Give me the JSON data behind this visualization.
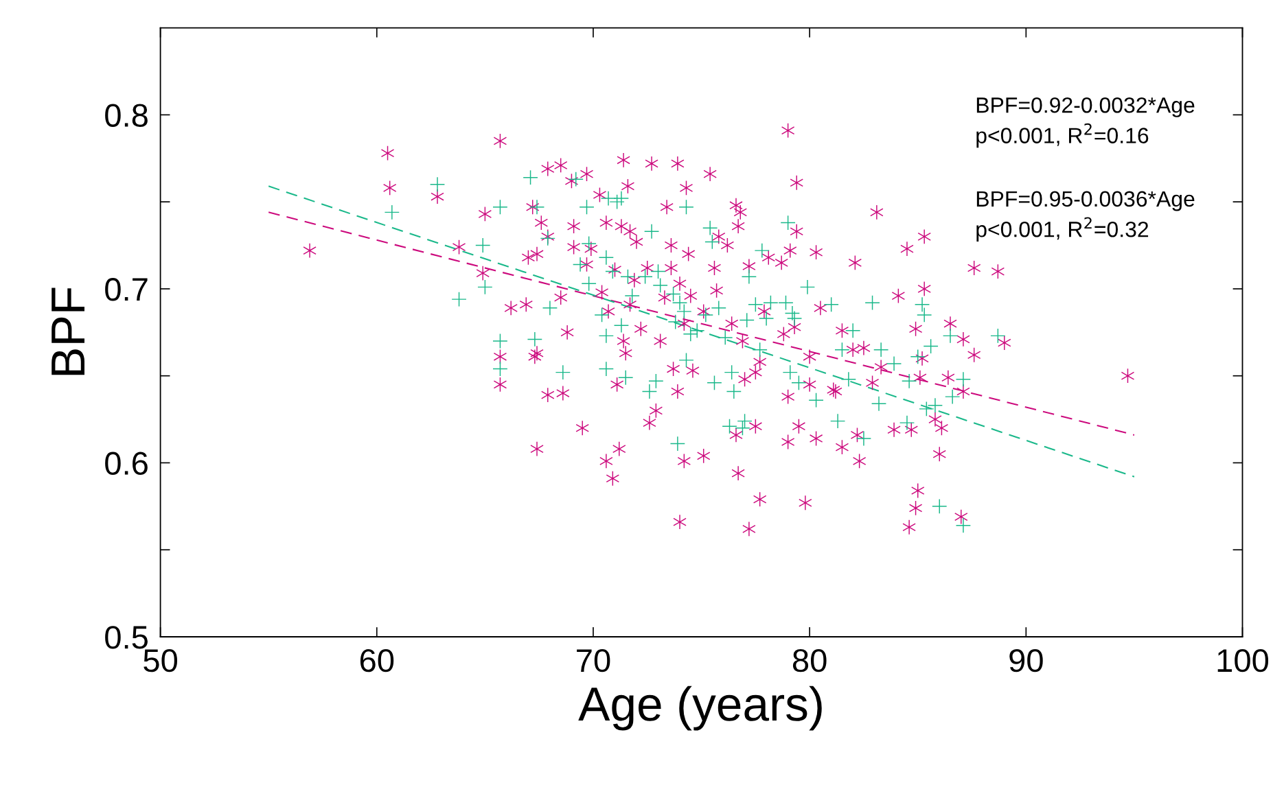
{
  "chart_data": {
    "type": "scatter",
    "xlabel": "Age (years)",
    "ylabel": "BPF",
    "xlim": [
      50,
      100
    ],
    "ylim": [
      0.5,
      0.85
    ],
    "xticks": [
      50,
      60,
      70,
      80,
      90,
      100
    ],
    "yticks": [
      0.5,
      {
        "value": 0.55,
        "label": null
      },
      0.6,
      {
        "value": 0.65,
        "label": null
      },
      0.7,
      {
        "value": 0.75,
        "label": null
      },
      0.8
    ],
    "grid": false,
    "series": [
      {
        "type": "scatter",
        "marker": "star",
        "color": "#cc0a7d",
        "x": [
          56.9,
          60.5,
          60.6,
          62.8,
          63.8,
          65.0,
          64.9,
          65.7,
          65.7,
          65.7,
          66.2,
          66.9,
          67.0,
          67.2,
          67.4,
          67.3,
          67.4,
          67.4,
          67.6,
          67.9,
          67.9,
          67.9,
          68.5,
          68.5,
          68.6,
          68.8,
          69.0,
          69.1,
          69.1,
          69.5,
          69.7,
          69.7,
          69.9,
          70.3,
          70.4,
          70.6,
          70.6,
          70.7,
          70.9,
          71.0,
          71.1,
          71.2,
          71.3,
          71.4,
          71.4,
          71.5,
          71.6,
          71.7,
          71.7,
          71.9,
          72.0,
          72.2,
          72.5,
          72.6,
          72.7,
          72.9,
          73.1,
          73.3,
          73.4,
          73.6,
          73.6,
          73.7,
          73.9,
          73.9,
          74.0,
          74.0,
          74.2,
          74.2,
          74.3,
          74.4,
          74.5,
          74.6,
          75.1,
          75.1,
          75.4,
          75.6,
          75.8,
          75.7,
          76.2,
          76.4,
          76.6,
          76.7,
          76.8,
          76.6,
          76.7,
          76.9,
          77.0,
          77.2,
          77.2,
          77.5,
          77.5,
          77.7,
          77.7,
          77.9,
          78.1,
          78.7,
          78.8,
          79.0,
          79.0,
          79.0,
          79.1,
          79.3,
          79.4,
          79.4,
          79.5,
          79.8,
          80.0,
          80.0,
          80.3,
          80.3,
          80.5,
          81.1,
          81.2,
          81.5,
          81.5,
          82.0,
          82.1,
          82.2,
          82.3,
          82.5,
          82.9,
          83.1,
          83.3,
          83.9,
          84.1,
          84.5,
          84.6,
          84.7,
          84.9,
          84.9,
          85.0,
          85.1,
          85.2,
          85.3,
          85.3,
          85.8,
          86.0,
          86.1,
          86.4,
          86.5,
          87.0,
          87.1,
          87.1,
          87.6,
          87.6,
          88.7,
          89.0,
          94.7
        ],
        "values": [
          0.722,
          0.778,
          0.758,
          0.753,
          0.724,
          0.743,
          0.709,
          0.785,
          0.661,
          0.645,
          0.689,
          0.691,
          0.718,
          0.747,
          0.72,
          0.661,
          0.663,
          0.608,
          0.738,
          0.769,
          0.73,
          0.639,
          0.695,
          0.771,
          0.64,
          0.675,
          0.762,
          0.736,
          0.724,
          0.62,
          0.766,
          0.714,
          0.723,
          0.754,
          0.698,
          0.738,
          0.601,
          0.687,
          0.591,
          0.711,
          0.645,
          0.608,
          0.736,
          0.774,
          0.67,
          0.663,
          0.759,
          0.691,
          0.733,
          0.705,
          0.727,
          0.677,
          0.712,
          0.623,
          0.772,
          0.63,
          0.67,
          0.695,
          0.747,
          0.725,
          0.712,
          0.654,
          0.772,
          0.641,
          0.566,
          0.703,
          0.68,
          0.601,
          0.758,
          0.72,
          0.696,
          0.653,
          0.687,
          0.604,
          0.766,
          0.712,
          0.73,
          0.699,
          0.725,
          0.68,
          0.748,
          0.736,
          0.744,
          0.616,
          0.594,
          0.67,
          0.648,
          0.713,
          0.562,
          0.652,
          0.621,
          0.658,
          0.579,
          0.687,
          0.718,
          0.715,
          0.674,
          0.638,
          0.612,
          0.791,
          0.722,
          0.678,
          0.761,
          0.733,
          0.621,
          0.577,
          0.661,
          0.645,
          0.721,
          0.614,
          0.689,
          0.642,
          0.641,
          0.676,
          0.609,
          0.665,
          0.715,
          0.616,
          0.601,
          0.666,
          0.646,
          0.744,
          0.655,
          0.619,
          0.696,
          0.723,
          0.563,
          0.619,
          0.677,
          0.574,
          0.584,
          0.649,
          0.66,
          0.73,
          0.7,
          0.625,
          0.605,
          0.62,
          0.649,
          0.68,
          0.569,
          0.641,
          0.671,
          0.712,
          0.662,
          0.71,
          0.669,
          0.65
        ]
      },
      {
        "type": "scatter",
        "marker": "cross",
        "color": "#1ab88a",
        "x": [
          60.7,
          62.8,
          63.8,
          64.9,
          65.0,
          65.7,
          65.7,
          65.7,
          67.1,
          67.3,
          67.4,
          67.9,
          68.0,
          68.6,
          69.2,
          69.4,
          69.7,
          69.8,
          69.8,
          70.4,
          70.6,
          70.6,
          70.6,
          70.7,
          70.9,
          71.1,
          71.3,
          71.3,
          71.5,
          71.6,
          71.8,
          72.4,
          72.6,
          72.7,
          72.9,
          73.0,
          73.1,
          73.7,
          73.8,
          73.9,
          74.0,
          74.2,
          74.3,
          74.3,
          74.5,
          74.8,
          75.2,
          75.4,
          75.5,
          75.6,
          75.8,
          76.1,
          76.3,
          76.4,
          76.5,
          76.9,
          77.0,
          77.1,
          77.2,
          77.5,
          77.7,
          77.8,
          78.0,
          78.2,
          78.9,
          79.0,
          79.1,
          79.2,
          79.3,
          79.5,
          79.9,
          80.3,
          81.0,
          81.3,
          81.5,
          81.8,
          82.0,
          82.5,
          82.9,
          83.2,
          83.3,
          83.9,
          84.5,
          84.6,
          85.0,
          85.2,
          85.3,
          85.4,
          85.6,
          85.8,
          86.0,
          86.5,
          86.6,
          87.1,
          87.1,
          88.7
        ],
        "values": [
          0.744,
          0.76,
          0.694,
          0.725,
          0.701,
          0.747,
          0.67,
          0.654,
          0.764,
          0.671,
          0.747,
          0.729,
          0.689,
          0.652,
          0.763,
          0.714,
          0.747,
          0.726,
          0.703,
          0.685,
          0.673,
          0.654,
          0.718,
          0.752,
          0.71,
          0.75,
          0.752,
          0.679,
          0.649,
          0.707,
          0.696,
          0.707,
          0.641,
          0.733,
          0.647,
          0.71,
          0.702,
          0.697,
          0.681,
          0.611,
          0.692,
          0.687,
          0.659,
          0.747,
          0.674,
          0.676,
          0.685,
          0.735,
          0.727,
          0.646,
          0.689,
          0.672,
          0.621,
          0.652,
          0.641,
          0.62,
          0.624,
          0.682,
          0.707,
          0.691,
          0.665,
          0.722,
          0.683,
          0.692,
          0.692,
          0.738,
          0.652,
          0.686,
          0.683,
          0.646,
          0.701,
          0.636,
          0.691,
          0.624,
          0.665,
          0.648,
          0.676,
          0.614,
          0.692,
          0.634,
          0.665,
          0.657,
          0.623,
          0.647,
          0.661,
          0.691,
          0.685,
          0.631,
          0.667,
          0.633,
          0.575,
          0.673,
          0.638,
          0.648,
          0.564,
          0.673
        ]
      },
      {
        "type": "line",
        "line_style": "dashed",
        "marker": "none",
        "color": "#cc0a7d",
        "x": [
          55,
          95
        ],
        "values": [
          0.744,
          0.616
        ]
      },
      {
        "type": "line",
        "line_style": "dashed",
        "marker": "none",
        "color": "#1ab88a",
        "x": [
          55,
          95
        ],
        "values": [
          0.759,
          0.592
        ]
      }
    ],
    "annotations": [
      "BPF=0.92-0.0032*Age",
      "p<0.001, R$^{2}$=0.16",
      "BPF=0.95-0.0036*Age",
      "p<0.001, R$^{2}$=0.32"
    ]
  }
}
